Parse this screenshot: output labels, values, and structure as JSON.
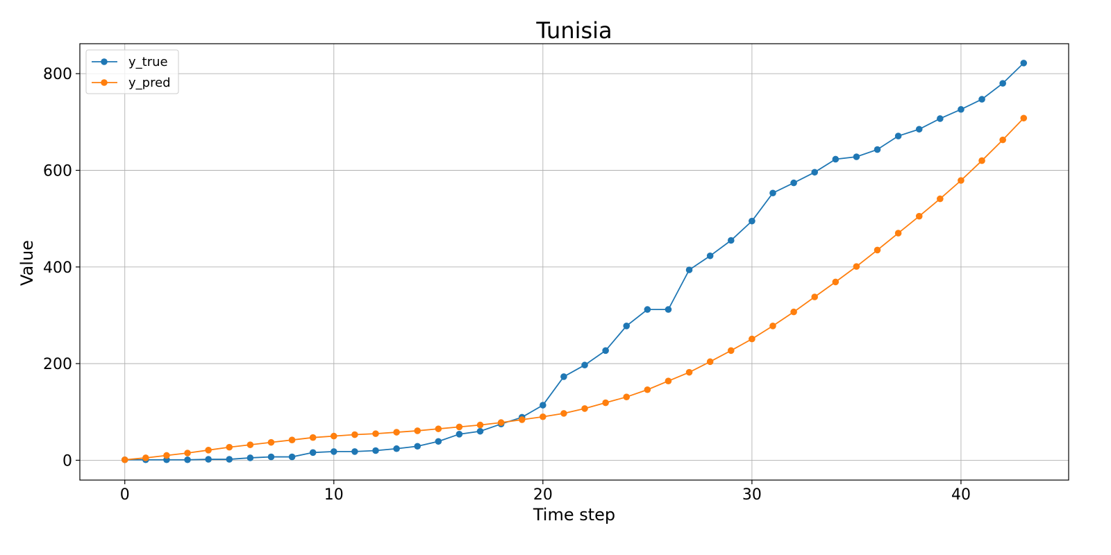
{
  "chart_data": {
    "type": "line",
    "title": "Tunisia",
    "xlabel": "Time step",
    "ylabel": "Value",
    "xlim": [
      -2.15,
      45.15
    ],
    "ylim": [
      -41,
      862
    ],
    "xticks": [
      0,
      10,
      20,
      30,
      40
    ],
    "yticks": [
      0,
      200,
      400,
      600,
      800
    ],
    "grid": true,
    "legend_position": "top-left",
    "x": [
      0,
      1,
      2,
      3,
      4,
      5,
      6,
      7,
      8,
      9,
      10,
      11,
      12,
      13,
      14,
      15,
      16,
      17,
      18,
      19,
      20,
      21,
      22,
      23,
      24,
      25,
      26,
      27,
      28,
      29,
      30,
      31,
      32,
      33,
      34,
      35,
      36,
      37,
      38,
      39,
      40,
      41,
      42,
      43
    ],
    "series": [
      {
        "name": "y_true",
        "color": "#1f77b4",
        "values": [
          1,
          1,
          1,
          1,
          2,
          2,
          5,
          7,
          7,
          16,
          18,
          18,
          20,
          24,
          29,
          39,
          54,
          60,
          75,
          89,
          114,
          173,
          197,
          227,
          278,
          312,
          312,
          394,
          423,
          455,
          495,
          553,
          574,
          596,
          623,
          628,
          643,
          671,
          685,
          707,
          726,
          747,
          780,
          822
        ]
      },
      {
        "name": "y_pred",
        "color": "#ff7f0e",
        "values": [
          1,
          5,
          10,
          15,
          21,
          27,
          32,
          37,
          42,
          47,
          50,
          53,
          55,
          58,
          61,
          65,
          69,
          73,
          78,
          84,
          90,
          97,
          107,
          119,
          131,
          146,
          164,
          182,
          204,
          227,
          251,
          278,
          307,
          338,
          369,
          401,
          435,
          470,
          505,
          541,
          579,
          620,
          663,
          708
        ]
      }
    ]
  }
}
